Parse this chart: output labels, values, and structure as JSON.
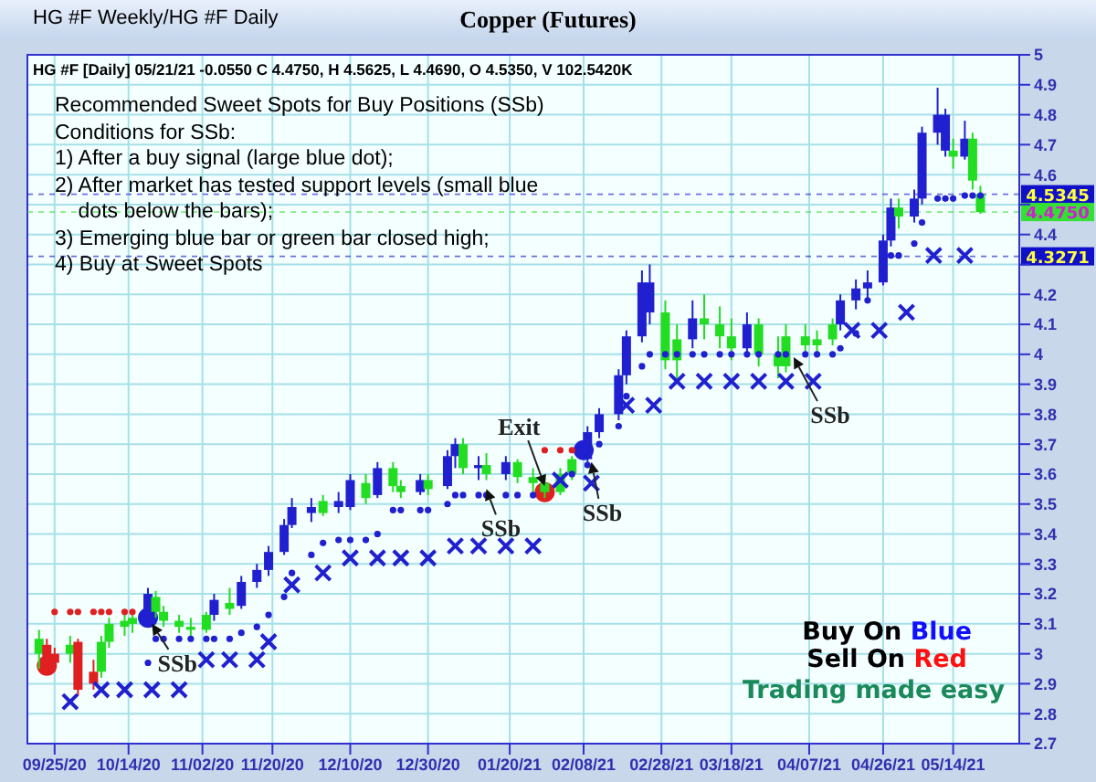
{
  "chart_data": {
    "type": "candlestick",
    "title": "Copper (Futures)",
    "subtitle": "HG #F [Daily] 05/21/21  -0.0550 C 4.4750, H 4.5625, L 4.4690, O 4.5350, V 102.5420K",
    "annotations": [
      "HG #F Weekly/HG #F Daily",
      "Recommended Sweet Spots for Buy Positions (SSb)\nConditions for SSb:\n1) After a buy signal (large blue dot);\n2) After market has tested support levels (small blue\n    dots below the bars);\n3) Emerging blue bar or green bar closed high;\n4) Buy at Sweet Spots",
      "Buy On Blue\nSell On Red",
      "Trading made easy",
      {
        "text": "SSb",
        "x": "2020-10-20",
        "y": 3.1
      },
      {
        "text": "SSb",
        "x": "2021-01-14",
        "y": 3.55
      },
      {
        "text": "Exit",
        "x": "2021-01-29",
        "y": 3.56
      },
      {
        "text": "SSb",
        "x": "2021-02-10",
        "y": 3.64
      },
      {
        "text": "SSb",
        "x": "2021-04-03",
        "y": 3.99
      }
    ],
    "x": [
      "2020-09-21",
      "2020-09-23",
      "2020-09-25",
      "2020-09-29",
      "2020-10-01",
      "2020-10-05",
      "2020-10-07",
      "2020-10-09",
      "2020-10-13",
      "2020-10-15",
      "2020-10-19",
      "2020-10-21",
      "2020-10-23",
      "2020-10-27",
      "2020-10-30",
      "2020-11-03",
      "2020-11-05",
      "2020-11-09",
      "2020-11-12",
      "2020-11-16",
      "2020-11-19",
      "2020-11-23",
      "2020-11-25",
      "2020-11-30",
      "2020-12-03",
      "2020-12-07",
      "2020-12-10",
      "2020-12-14",
      "2020-12-17",
      "2020-12-21",
      "2020-12-23",
      "2020-12-28",
      "2020-12-30",
      "2021-01-04",
      "2021-01-06",
      "2021-01-08",
      "2021-01-12",
      "2021-01-14",
      "2021-01-19",
      "2021-01-22",
      "2021-01-26",
      "2021-01-29",
      "2021-02-02",
      "2021-02-05",
      "2021-02-09",
      "2021-02-12",
      "2021-02-17",
      "2021-02-19",
      "2021-02-23",
      "2021-02-25",
      "2021-03-01",
      "2021-03-04",
      "2021-03-08",
      "2021-03-11",
      "2021-03-15",
      "2021-03-18",
      "2021-03-22",
      "2021-03-25",
      "2021-03-30",
      "2021-04-01",
      "2021-04-06",
      "2021-04-09",
      "2021-04-13",
      "2021-04-15",
      "2021-04-19",
      "2021-04-22",
      "2021-04-26",
      "2021-04-28",
      "2021-04-30",
      "2021-05-04",
      "2021-05-06",
      "2021-05-10",
      "2021-05-12",
      "2021-05-14",
      "2021-05-17",
      "2021-05-19",
      "2021-05-21"
    ],
    "ohlc": [
      [
        3.05,
        3.08,
        2.95,
        3.0
      ],
      [
        3.03,
        3.05,
        2.93,
        2.96
      ],
      [
        3.0,
        3.02,
        2.94,
        2.97
      ],
      [
        3.03,
        3.06,
        2.97,
        3.0
      ],
      [
        3.04,
        3.05,
        2.86,
        2.88
      ],
      [
        2.94,
        2.98,
        2.88,
        2.9
      ],
      [
        3.04,
        3.06,
        2.92,
        2.94
      ],
      [
        3.1,
        3.12,
        3.02,
        3.04
      ],
      [
        3.11,
        3.13,
        3.06,
        3.09
      ],
      [
        3.12,
        3.14,
        3.07,
        3.1
      ],
      [
        3.12,
        3.22,
        3.1,
        3.2
      ],
      [
        3.19,
        3.21,
        3.12,
        3.14
      ],
      [
        3.14,
        3.16,
        3.09,
        3.11
      ],
      [
        3.11,
        3.13,
        3.07,
        3.09
      ],
      [
        3.09,
        3.12,
        3.06,
        3.08
      ],
      [
        3.13,
        3.14,
        3.07,
        3.08
      ],
      [
        3.13,
        3.2,
        3.11,
        3.18
      ],
      [
        3.17,
        3.22,
        3.13,
        3.15
      ],
      [
        3.16,
        3.26,
        3.15,
        3.24
      ],
      [
        3.24,
        3.3,
        3.22,
        3.28
      ],
      [
        3.28,
        3.36,
        3.26,
        3.34
      ],
      [
        3.34,
        3.45,
        3.33,
        3.43
      ],
      [
        3.43,
        3.52,
        3.42,
        3.49
      ],
      [
        3.47,
        3.52,
        3.44,
        3.49
      ],
      [
        3.51,
        3.53,
        3.46,
        3.47
      ],
      [
        3.49,
        3.54,
        3.47,
        3.51
      ],
      [
        3.49,
        3.6,
        3.48,
        3.58
      ],
      [
        3.57,
        3.6,
        3.5,
        3.52
      ],
      [
        3.53,
        3.64,
        3.52,
        3.62
      ],
      [
        3.62,
        3.64,
        3.54,
        3.56
      ],
      [
        3.56,
        3.58,
        3.52,
        3.54
      ],
      [
        3.54,
        3.6,
        3.53,
        3.58
      ],
      [
        3.58,
        3.6,
        3.53,
        3.55
      ],
      [
        3.56,
        3.68,
        3.55,
        3.66
      ],
      [
        3.66,
        3.72,
        3.62,
        3.7
      ],
      [
        3.7,
        3.72,
        3.6,
        3.62
      ],
      [
        3.62,
        3.66,
        3.58,
        3.63
      ],
      [
        3.63,
        3.67,
        3.58,
        3.6
      ],
      [
        3.6,
        3.66,
        3.58,
        3.64
      ],
      [
        3.64,
        3.65,
        3.57,
        3.59
      ],
      [
        3.59,
        3.62,
        3.54,
        3.57
      ],
      [
        3.57,
        3.59,
        3.52,
        3.54
      ],
      [
        3.6,
        3.62,
        3.53,
        3.54
      ],
      [
        3.65,
        3.66,
        3.58,
        3.6
      ],
      [
        3.65,
        3.76,
        3.64,
        3.74
      ],
      [
        3.74,
        3.82,
        3.72,
        3.8
      ],
      [
        3.8,
        3.95,
        3.78,
        3.93
      ],
      [
        3.93,
        4.08,
        3.9,
        4.06
      ],
      [
        4.06,
        4.28,
        4.04,
        4.24
      ],
      [
        4.14,
        4.3,
        4.1,
        4.24
      ],
      [
        4.14,
        4.18,
        3.95,
        3.98
      ],
      [
        4.05,
        4.1,
        3.92,
        3.98
      ],
      [
        4.05,
        4.18,
        4.02,
        4.12
      ],
      [
        4.12,
        4.2,
        4.05,
        4.1
      ],
      [
        4.1,
        4.16,
        4.02,
        4.06
      ],
      [
        4.06,
        4.12,
        3.98,
        4.02
      ],
      [
        4.02,
        4.14,
        4.0,
        4.1
      ],
      [
        4.1,
        4.12,
        3.96,
        4.0
      ],
      [
        4.0,
        4.06,
        3.92,
        3.96
      ],
      [
        4.06,
        4.1,
        3.94,
        3.96
      ],
      [
        4.06,
        4.1,
        4.0,
        4.03
      ],
      [
        4.05,
        4.08,
        4.0,
        4.03
      ],
      [
        4.1,
        4.12,
        4.03,
        4.05
      ],
      [
        4.1,
        4.2,
        4.08,
        4.18
      ],
      [
        4.18,
        4.25,
        4.15,
        4.22
      ],
      [
        4.22,
        4.28,
        4.18,
        4.24
      ],
      [
        4.24,
        4.4,
        4.23,
        4.38
      ],
      [
        4.38,
        4.52,
        4.36,
        4.49
      ],
      [
        4.49,
        4.52,
        4.42,
        4.46
      ],
      [
        4.46,
        4.55,
        4.44,
        4.52
      ],
      [
        4.52,
        4.76,
        4.5,
        4.74
      ],
      [
        4.74,
        4.89,
        4.7,
        4.8
      ],
      [
        4.68,
        4.82,
        4.66,
        4.8
      ],
      [
        4.68,
        4.72,
        4.62,
        4.66
      ],
      [
        4.66,
        4.78,
        4.65,
        4.72
      ],
      [
        4.72,
        4.74,
        4.55,
        4.58
      ],
      [
        4.535,
        4.5625,
        4.469,
        4.475
      ]
    ],
    "colors": [
      "#22dd22",
      "#e02020",
      "#e02020",
      "#22dd22",
      "#e02020",
      "#e02020",
      "#22dd22",
      "#22dd22",
      "#22dd22",
      "#22dd22",
      "#2020d0",
      "#22dd22",
      "#22dd22",
      "#22dd22",
      "#22dd22",
      "#22dd22",
      "#2020d0",
      "#22dd22",
      "#2020d0",
      "#2020d0",
      "#2020d0",
      "#2020d0",
      "#2020d0",
      "#2020d0",
      "#22dd22",
      "#2020d0",
      "#2020d0",
      "#22dd22",
      "#2020d0",
      "#22dd22",
      "#22dd22",
      "#2020d0",
      "#22dd22",
      "#2020d0",
      "#2020d0",
      "#22dd22",
      "#2020d0",
      "#22dd22",
      "#2020d0",
      "#22dd22",
      "#22dd22",
      "#22dd22",
      "#22dd22",
      "#22dd22",
      "#2020d0",
      "#2020d0",
      "#2020d0",
      "#2020d0",
      "#2020d0",
      "#2020d0",
      "#22dd22",
      "#22dd22",
      "#2020d0",
      "#22dd22",
      "#22dd22",
      "#22dd22",
      "#2020d0",
      "#22dd22",
      "#22dd22",
      "#22dd22",
      "#22dd22",
      "#22dd22",
      "#22dd22",
      "#2020d0",
      "#2020d0",
      "#2020d0",
      "#2020d0",
      "#2020d0",
      "#22dd22",
      "#2020d0",
      "#2020d0",
      "#2020d0",
      "#2020d0",
      "#22dd22",
      "#2020d0",
      "#22dd22",
      "#22dd22"
    ],
    "series": [
      {
        "type": "scatter",
        "marker": "circle",
        "color": "#2020d0",
        "x": [
          "2020-10-19",
          "2020-10-21",
          "2020-10-23",
          "2020-10-27",
          "2020-10-30",
          "2020-11-03",
          "2020-11-05",
          "2020-11-09",
          "2020-11-12",
          "2020-11-16",
          "2020-11-19",
          "2020-11-23",
          "2020-11-25",
          "2020-11-30",
          "2020-12-03",
          "2020-12-07",
          "2020-12-10",
          "2020-12-14",
          "2020-12-17",
          "2020-12-21",
          "2020-12-23",
          "2020-12-28",
          "2020-12-30",
          "2021-01-04",
          "2021-01-06",
          "2021-01-08",
          "2021-01-12",
          "2021-01-14",
          "2021-01-19",
          "2021-01-22",
          "2021-01-26",
          "2021-02-05",
          "2021-02-09",
          "2021-02-12",
          "2021-02-17",
          "2021-02-19",
          "2021-02-23",
          "2021-02-25",
          "2021-03-01",
          "2021-03-04",
          "2021-03-08",
          "2021-03-11",
          "2021-03-15",
          "2021-03-18",
          "2021-03-22",
          "2021-03-25",
          "2021-03-30",
          "2021-04-01",
          "2021-04-06",
          "2021-04-09",
          "2021-04-13",
          "2021-04-15",
          "2021-04-19",
          "2021-04-22",
          "2021-04-26",
          "2021-04-28",
          "2021-04-30",
          "2021-05-04",
          "2021-05-06",
          "2021-05-10",
          "2021-05-12",
          "2021-05-14",
          "2021-05-17",
          "2021-05-19",
          "2021-05-21"
        ],
        "values": [
          2.97,
          3.05,
          3.05,
          3.05,
          3.05,
          3.05,
          3.05,
          3.05,
          3.07,
          3.09,
          3.13,
          3.19,
          3.27,
          3.33,
          3.37,
          3.38,
          3.38,
          3.38,
          3.4,
          3.48,
          3.48,
          3.48,
          3.48,
          3.5,
          3.53,
          3.53,
          3.53,
          3.53,
          3.53,
          3.53,
          3.53,
          3.6,
          3.63,
          3.7,
          3.76,
          3.86,
          3.96,
          4.0,
          4.0,
          4.0,
          4.0,
          4.0,
          4.0,
          4.0,
          4.0,
          4.0,
          4.0,
          4.0,
          4.0,
          4.0,
          4.0,
          4.02,
          4.07,
          4.18,
          null,
          4.33,
          4.33,
          4.37,
          4.44,
          4.52,
          4.52,
          4.52,
          4.53,
          4.53,
          4.53
        ]
      },
      {
        "type": "scatter",
        "marker": "circle",
        "color": "#e02020",
        "x": [
          "2020-09-25",
          "2020-09-29",
          "2020-10-01",
          "2020-10-05",
          "2020-10-07",
          "2020-10-09",
          "2020-10-13",
          "2020-10-15",
          "2021-01-29",
          "2021-02-02",
          "2021-02-05"
        ],
        "values": [
          3.14,
          3.14,
          3.14,
          3.14,
          3.14,
          3.14,
          3.14,
          3.14,
          3.68,
          3.68,
          3.68
        ]
      },
      {
        "type": "scatter",
        "marker": "cross",
        "color": "#2020d0",
        "x": [
          "2020-09-29",
          "2020-10-07",
          "2020-10-13",
          "2020-10-20",
          "2020-10-27",
          "2020-11-03",
          "2020-11-09",
          "2020-11-16",
          "2020-11-19",
          "2020-11-25",
          "2020-12-03",
          "2020-12-10",
          "2020-12-17",
          "2020-12-23",
          "2020-12-30",
          "2021-01-06",
          "2021-01-12",
          "2021-01-19",
          "2021-01-26",
          "2021-02-02",
          "2021-02-10",
          "2021-02-19",
          "2021-02-26",
          "2021-03-04",
          "2021-03-11",
          "2021-03-18",
          "2021-03-25",
          "2021-04-01",
          "2021-04-08",
          "2021-04-18",
          "2021-04-25",
          "2021-05-02",
          "2021-05-09",
          "2021-05-17"
        ],
        "values": [
          2.84,
          2.88,
          2.88,
          2.88,
          2.88,
          2.98,
          2.98,
          2.98,
          3.04,
          3.23,
          3.27,
          3.32,
          3.32,
          3.32,
          3.32,
          3.36,
          3.36,
          3.36,
          3.36,
          3.58,
          3.57,
          3.83,
          3.83,
          3.91,
          3.91,
          3.91,
          3.91,
          3.91,
          3.91,
          4.08,
          4.08,
          4.14,
          4.33,
          4.33
        ]
      },
      {
        "type": "bubble",
        "color": "#2020d0",
        "x": [
          "2020-10-19",
          "2021-02-08"
        ],
        "values": [
          3.12,
          3.68
        ],
        "sizes": [
          1,
          1
        ]
      },
      {
        "type": "bubble",
        "color": "#e02020",
        "x": [
          "2020-09-23",
          "2021-01-29"
        ],
        "values": [
          2.96,
          3.54
        ],
        "sizes": [
          1,
          1
        ]
      }
    ],
    "ref_lines": [
      {
        "axis": "y",
        "value": 4.5345,
        "label": "4.5345",
        "color": "#1010c8"
      },
      {
        "axis": "y",
        "value": 4.475,
        "label": "4.4750",
        "color": "#33e033"
      },
      {
        "axis": "y",
        "value": 4.3271,
        "label": "4.3271",
        "color": "#1010c8"
      }
    ],
    "xlim": [
      "2020-09-18",
      "2021-05-31"
    ],
    "xticks": [
      {
        "value": "2020-09-25",
        "label": "09/25/20"
      },
      {
        "value": "2020-10-14",
        "label": "10/14/20"
      },
      {
        "value": "2020-11-02",
        "label": "11/02/20"
      },
      {
        "value": "2020-11-20",
        "label": "11/20/20"
      },
      {
        "value": "2020-12-10",
        "label": "12/10/20"
      },
      {
        "value": "2020-12-30",
        "label": "12/30/20"
      },
      {
        "value": "2021-01-20",
        "label": "01/20/21"
      },
      {
        "value": "2021-02-08",
        "label": "02/08/21"
      },
      {
        "value": "2021-02-28",
        "label": "02/28/21"
      },
      {
        "value": "2021-03-18",
        "label": "03/18/21"
      },
      {
        "value": "2021-04-07",
        "label": "04/07/21"
      },
      {
        "value": "2021-04-26",
        "label": "04/26/21"
      },
      {
        "value": "2021-05-14",
        "label": "05/14/21"
      }
    ],
    "ylim": [
      2.7,
      5
    ],
    "yticks": [
      2.7,
      2.8,
      2.9,
      3,
      3.1,
      3.2,
      3.3,
      3.4,
      3.5,
      3.6,
      3.7,
      3.8,
      3.9,
      4,
      4.1,
      4.2,
      {
        "value": 4.3,
        "label": null
      },
      4.4,
      {
        "value": 4.5,
        "label": null
      },
      4.6,
      4.7,
      4.8,
      4.9,
      5
    ],
    "grid": true,
    "legend": false
  }
}
